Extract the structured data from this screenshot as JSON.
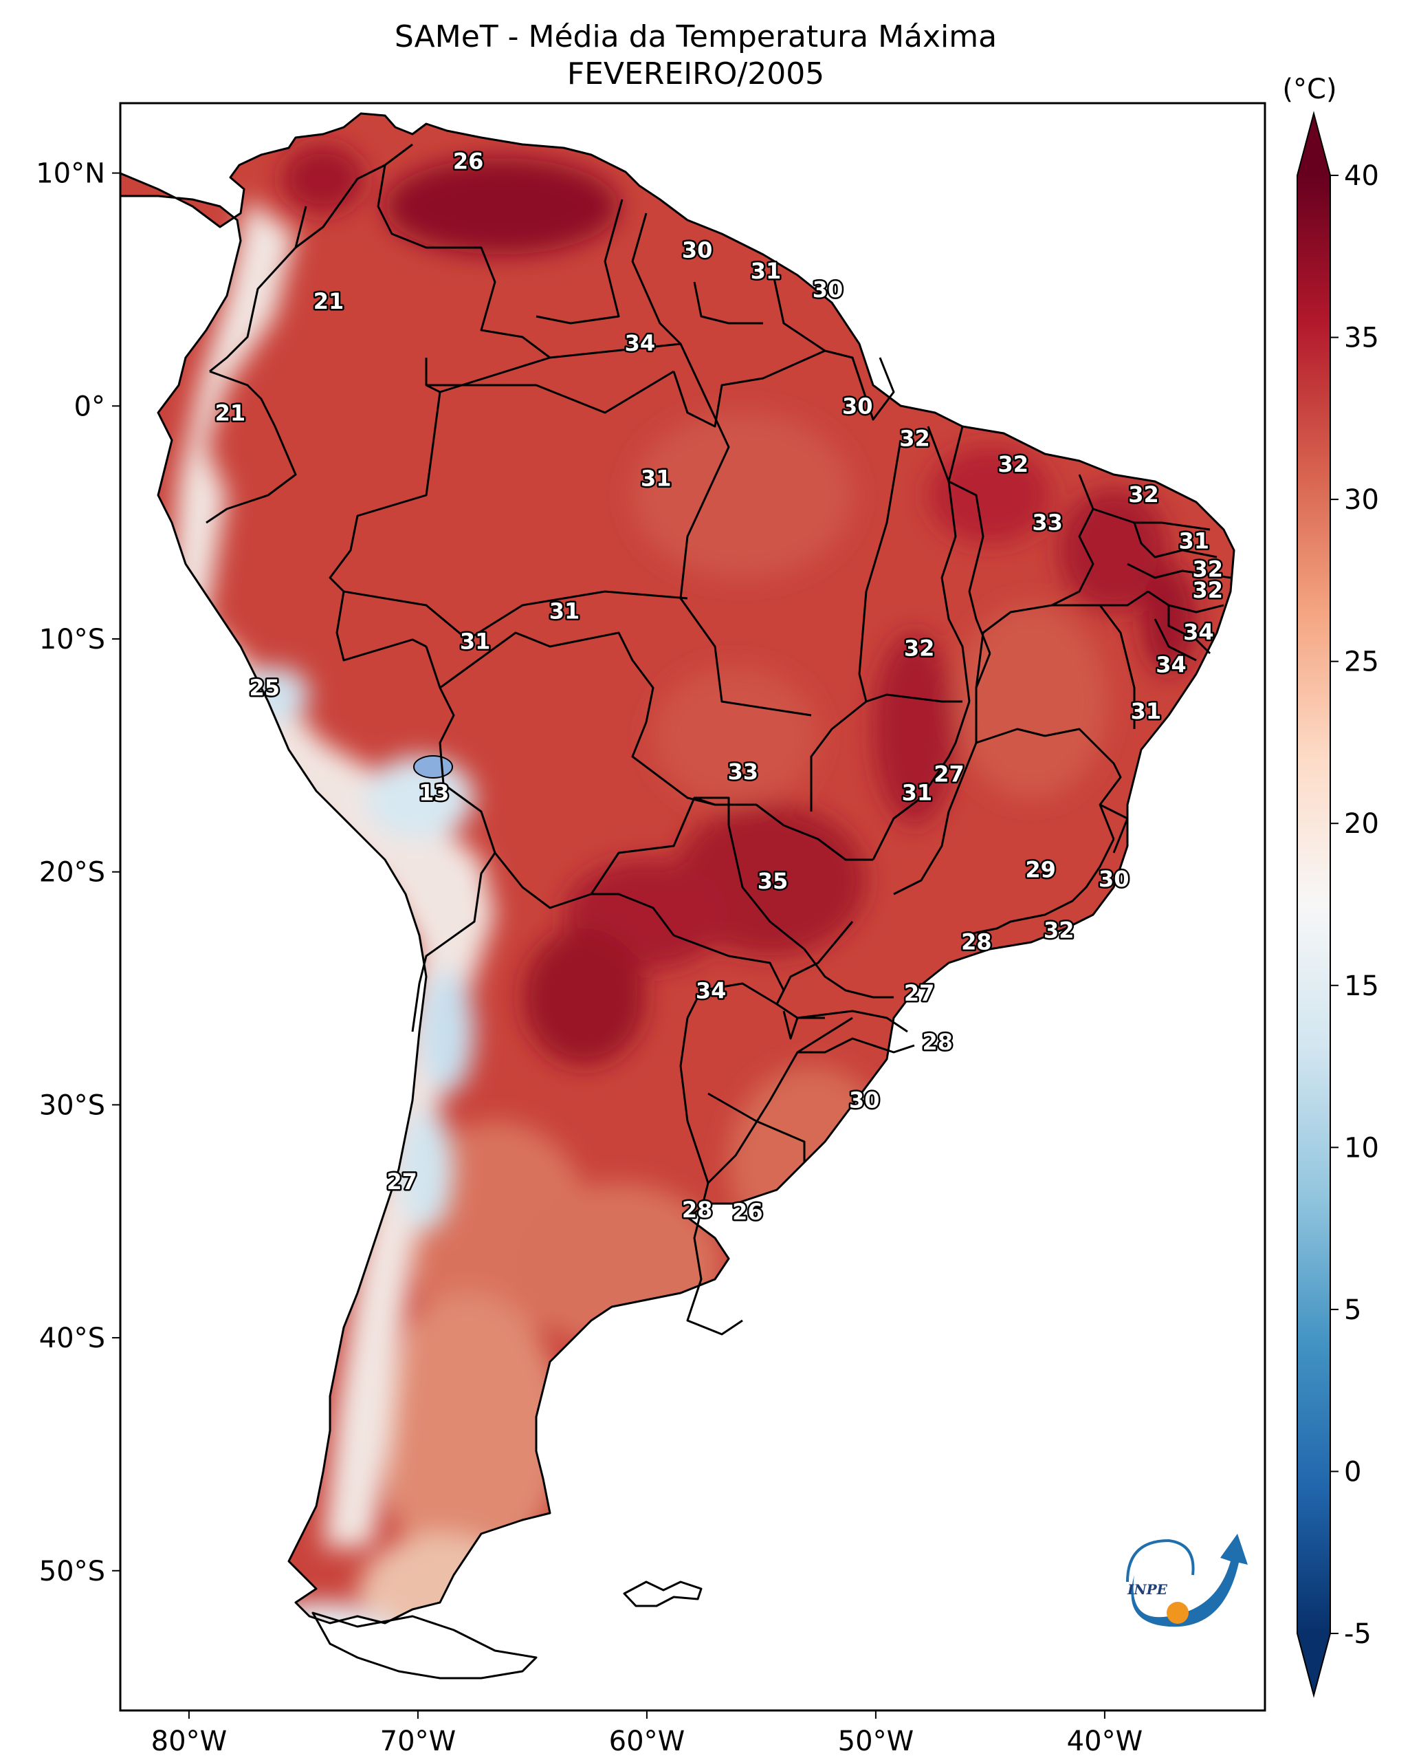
{
  "title": "SAMeT - Média da Temperatura Máxima",
  "subtitle": "FEVEREIRO/2005",
  "units_label": "(°C)",
  "logo_text": "INPE",
  "lat_ticks": [
    "10°N",
    "0°",
    "10°S",
    "20°S",
    "30°S",
    "40°S",
    "50°S"
  ],
  "lon_ticks": [
    "80°W",
    "70°W",
    "60°W",
    "50°W",
    "40°W"
  ],
  "colorbar": {
    "min": -5,
    "max": 40,
    "ticks": [
      "40",
      "35",
      "30",
      "25",
      "20",
      "15",
      "10",
      "5",
      "0",
      "-5"
    ],
    "colors": [
      "#08306b",
      "#2166ac",
      "#4393c3",
      "#92c5de",
      "#d1e5f0",
      "#f7f7f7",
      "#fddbc7",
      "#f4a582",
      "#d6604d",
      "#b2182b",
      "#67001f"
    ]
  },
  "chart_data": {
    "type": "map",
    "extent": {
      "lon": [
        -83,
        -33
      ],
      "lat": [
        -56,
        13
      ]
    },
    "labels": [
      {
        "text": "26",
        "lon": -67.8,
        "lat": 10.5
      },
      {
        "text": "30",
        "lon": -57.8,
        "lat": 6.7
      },
      {
        "text": "31",
        "lon": -54.8,
        "lat": 5.8
      },
      {
        "text": "30",
        "lon": -52.1,
        "lat": 5.0
      },
      {
        "text": "21",
        "lon": -73.9,
        "lat": 4.5
      },
      {
        "text": "34",
        "lon": -60.3,
        "lat": 2.7
      },
      {
        "text": "21",
        "lon": -78.2,
        "lat": -0.3
      },
      {
        "text": "30",
        "lon": -50.8,
        "lat": 0.0
      },
      {
        "text": "32",
        "lon": -48.3,
        "lat": -1.4
      },
      {
        "text": "31",
        "lon": -59.6,
        "lat": -3.1
      },
      {
        "text": "32",
        "lon": -44.0,
        "lat": -2.5
      },
      {
        "text": "32",
        "lon": -38.3,
        "lat": -3.8
      },
      {
        "text": "33",
        "lon": -42.5,
        "lat": -5.0
      },
      {
        "text": "31",
        "lon": -36.1,
        "lat": -5.8
      },
      {
        "text": "32",
        "lon": -35.5,
        "lat": -7.0
      },
      {
        "text": "32",
        "lon": -35.5,
        "lat": -7.9
      },
      {
        "text": "31",
        "lon": -63.6,
        "lat": -8.8
      },
      {
        "text": "31",
        "lon": -67.5,
        "lat": -10.1
      },
      {
        "text": "34",
        "lon": -35.9,
        "lat": -9.7
      },
      {
        "text": "32",
        "lon": -48.1,
        "lat": -10.4
      },
      {
        "text": "34",
        "lon": -37.1,
        "lat": -11.1
      },
      {
        "text": "25",
        "lon": -76.7,
        "lat": -12.1
      },
      {
        "text": "31",
        "lon": -38.2,
        "lat": -13.1
      },
      {
        "text": "33",
        "lon": -55.8,
        "lat": -15.7
      },
      {
        "text": "27",
        "lon": -46.8,
        "lat": -15.8
      },
      {
        "text": "13",
        "lon": -69.3,
        "lat": -16.6
      },
      {
        "text": "31",
        "lon": -48.2,
        "lat": -16.6
      },
      {
        "text": "29",
        "lon": -42.8,
        "lat": -19.9
      },
      {
        "text": "35",
        "lon": -54.5,
        "lat": -20.4
      },
      {
        "text": "30",
        "lon": -39.6,
        "lat": -20.3
      },
      {
        "text": "28",
        "lon": -45.6,
        "lat": -23.0
      },
      {
        "text": "32",
        "lon": -42.0,
        "lat": -22.5
      },
      {
        "text": "34",
        "lon": -57.2,
        "lat": -25.1
      },
      {
        "text": "27",
        "lon": -48.1,
        "lat": -25.2
      },
      {
        "text": "28",
        "lon": -47.3,
        "lat": -27.3
      },
      {
        "text": "30",
        "lon": -50.5,
        "lat": -29.8
      },
      {
        "text": "27",
        "lon": -70.7,
        "lat": -33.3
      },
      {
        "text": "28",
        "lon": -57.8,
        "lat": -34.5
      },
      {
        "text": "26",
        "lon": -55.6,
        "lat": -34.6
      }
    ]
  }
}
